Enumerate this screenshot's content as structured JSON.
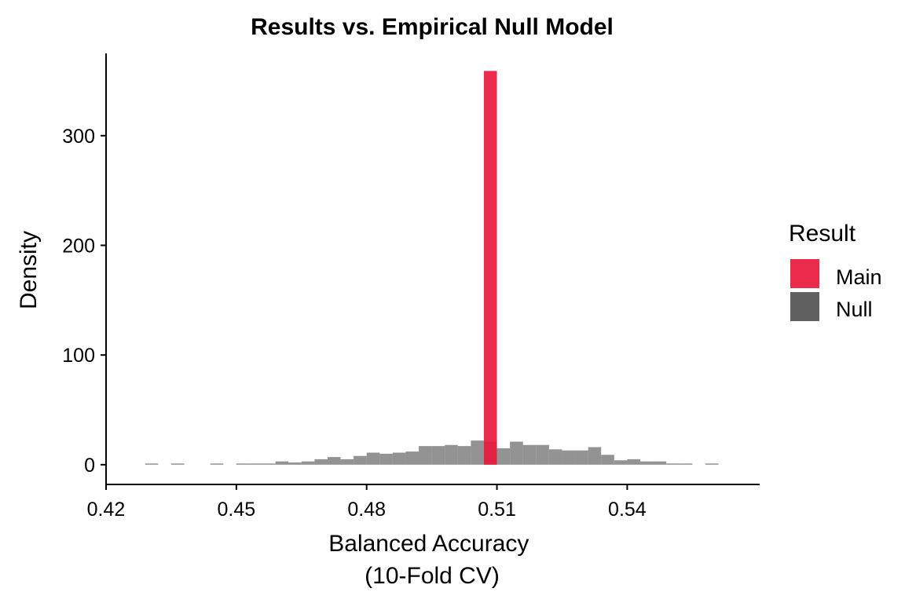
{
  "chart_data": {
    "type": "bar",
    "title": "Results vs. Empirical Null Model",
    "xlabel_lines": [
      "Balanced Accuracy",
      "(10-Fold CV)"
    ],
    "ylabel": "Density",
    "xlim": [
      0.42,
      0.5705
    ],
    "ylim": [
      -18,
      375
    ],
    "x_ticks": [
      0.42,
      0.45,
      0.48,
      0.51,
      0.54
    ],
    "x_tick_labels": [
      "0.42",
      "0.45",
      "0.48",
      "0.51",
      "0.54"
    ],
    "y_ticks": [
      0,
      100,
      200,
      300
    ],
    "y_tick_labels": [
      "0",
      "100",
      "200",
      "300"
    ],
    "bin_width": 0.003,
    "grid": false,
    "legend": {
      "title": "Result",
      "position": "right",
      "entries": [
        {
          "name": "Main",
          "color": "#e8193c"
        },
        {
          "name": "Null",
          "color": "#595959"
        }
      ]
    },
    "series": [
      {
        "name": "Null",
        "color": "#595959",
        "opacity": 0.65,
        "bins": [
          {
            "x0": 0.429,
            "y": 0.3
          },
          {
            "x0": 0.435,
            "y": 0.3
          },
          {
            "x0": 0.444,
            "y": 0.6
          },
          {
            "x0": 0.45,
            "y": 0.3
          },
          {
            "x0": 0.453,
            "y": 0.6
          },
          {
            "x0": 0.456,
            "y": 1.0
          },
          {
            "x0": 0.459,
            "y": 3.0
          },
          {
            "x0": 0.462,
            "y": 2.0
          },
          {
            "x0": 0.465,
            "y": 3.0
          },
          {
            "x0": 0.468,
            "y": 5.0
          },
          {
            "x0": 0.471,
            "y": 7.0
          },
          {
            "x0": 0.474,
            "y": 5.0
          },
          {
            "x0": 0.477,
            "y": 8.0
          },
          {
            "x0": 0.48,
            "y": 11.0
          },
          {
            "x0": 0.483,
            "y": 10.0
          },
          {
            "x0": 0.486,
            "y": 11.0
          },
          {
            "x0": 0.489,
            "y": 12.0
          },
          {
            "x0": 0.492,
            "y": 17.0
          },
          {
            "x0": 0.495,
            "y": 17.0
          },
          {
            "x0": 0.498,
            "y": 18.0
          },
          {
            "x0": 0.501,
            "y": 17.0
          },
          {
            "x0": 0.504,
            "y": 22.0
          },
          {
            "x0": 0.507,
            "y": 21.0
          },
          {
            "x0": 0.51,
            "y": 15.0
          },
          {
            "x0": 0.513,
            "y": 21.0
          },
          {
            "x0": 0.516,
            "y": 18.0
          },
          {
            "x0": 0.519,
            "y": 18.0
          },
          {
            "x0": 0.522,
            "y": 14.0
          },
          {
            "x0": 0.525,
            "y": 13.0
          },
          {
            "x0": 0.528,
            "y": 13.0
          },
          {
            "x0": 0.531,
            "y": 16.0
          },
          {
            "x0": 0.534,
            "y": 9.0
          },
          {
            "x0": 0.537,
            "y": 4.0
          },
          {
            "x0": 0.54,
            "y": 5.0
          },
          {
            "x0": 0.543,
            "y": 3.0
          },
          {
            "x0": 0.546,
            "y": 3.0
          },
          {
            "x0": 0.549,
            "y": 1.0
          },
          {
            "x0": 0.552,
            "y": 1.0
          },
          {
            "x0": 0.558,
            "y": 0.3
          }
        ]
      },
      {
        "name": "Main",
        "color": "#e8193c",
        "opacity": 0.92,
        "bins": [
          {
            "x0": 0.507,
            "y": 359.0
          }
        ]
      }
    ]
  }
}
